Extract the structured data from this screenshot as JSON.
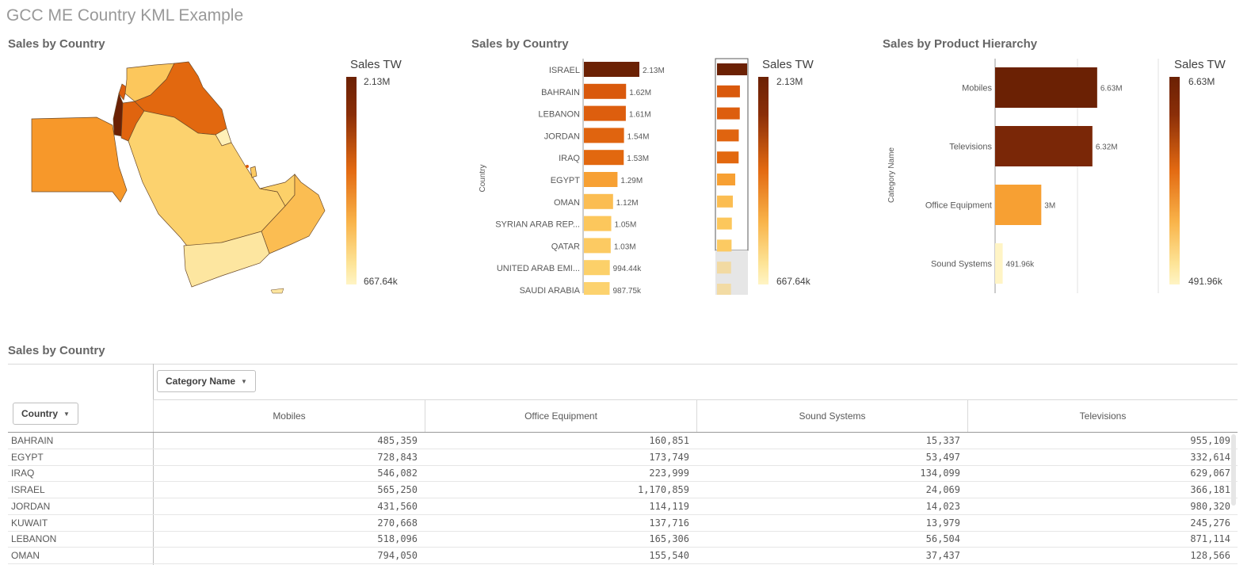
{
  "app": {
    "title": "GCC ME Country KML Example"
  },
  "colors": {
    "dark": "#6b2104",
    "mid": "#e0640f",
    "orange": "#f39a2a",
    "light": "#fcd26e",
    "pale": "#fff0b8"
  },
  "map_panel": {
    "title": "Sales by Country",
    "legend": {
      "title": "Sales TW",
      "max_label": "2.13M",
      "min_label": "667.64k"
    }
  },
  "country_bar_panel": {
    "title": "Sales by Country",
    "legend": {
      "title": "Sales TW",
      "max_label": "2.13M",
      "min_label": "667.64k"
    }
  },
  "product_panel": {
    "title": "Sales by Product Hierarchy",
    "legend": {
      "title": "Sales TW",
      "max_label": "6.63M",
      "min_label": "491.96k"
    }
  },
  "chart_data": [
    {
      "type": "bar",
      "orientation": "horizontal",
      "title": "Sales by Country",
      "ylabel": "Country",
      "categories": [
        "ISRAEL",
        "BAHRAIN",
        "LEBANON",
        "JORDAN",
        "IRAQ",
        "EGYPT",
        "OMAN",
        "SYRIAN ARAB REP...",
        "QATAR",
        "UNITED ARAB EMI...",
        "SAUDI ARABIA"
      ],
      "values": [
        2130000,
        1620000,
        1610000,
        1540000,
        1530000,
        1290000,
        1120000,
        1050000,
        1030000,
        994440,
        987750
      ],
      "value_labels": [
        "2.13M",
        "1.62M",
        "1.61M",
        "1.54M",
        "1.53M",
        "1.29M",
        "1.12M",
        "1.05M",
        "1.03M",
        "994.44k",
        "987.75k"
      ],
      "colors": [
        "#6b2104",
        "#d9590c",
        "#dd5e0e",
        "#e0640f",
        "#e2680f",
        "#f7a033",
        "#fbbd52",
        "#fcc75c",
        "#fcca62",
        "#fcd069",
        "#fcd26e"
      ],
      "xlim": [
        0,
        2400000
      ]
    },
    {
      "type": "bar",
      "orientation": "horizontal",
      "title": "Sales by Product Hierarchy",
      "ylabel": "Category Name",
      "categories": [
        "Mobiles",
        "Televisions",
        "Office Equipment",
        "Sound Systems"
      ],
      "values": [
        6630000,
        6320000,
        3000000,
        491960
      ],
      "value_labels": [
        "6.63M",
        "6.32M",
        "3M",
        "491.96k"
      ],
      "colors": [
        "#6b2104",
        "#7a2707",
        "#f7a033",
        "#fff4c5"
      ],
      "xlim": [
        0,
        10600000
      ]
    }
  ],
  "pivot": {
    "title": "Sales by Country",
    "row_dim_button": "Country",
    "col_dim_button": "Category Name",
    "columns": [
      "Mobiles",
      "Office Equipment",
      "Sound Systems",
      "Televisions"
    ],
    "rows": [
      {
        "country": "BAHRAIN",
        "values": [
          "485,359",
          "160,851",
          "15,337",
          "955,109"
        ]
      },
      {
        "country": "EGYPT",
        "values": [
          "728,843",
          "173,749",
          "53,497",
          "332,614"
        ]
      },
      {
        "country": "IRAQ",
        "values": [
          "546,082",
          "223,999",
          "134,099",
          "629,067"
        ]
      },
      {
        "country": "ISRAEL",
        "values": [
          "565,250",
          "1,170,859",
          "24,069",
          "366,181"
        ]
      },
      {
        "country": "JORDAN",
        "values": [
          "431,560",
          "114,119",
          "14,023",
          "980,320"
        ]
      },
      {
        "country": "KUWAIT",
        "values": [
          "270,668",
          "137,716",
          "13,979",
          "245,276"
        ]
      },
      {
        "country": "LEBANON",
        "values": [
          "518,096",
          "165,306",
          "56,504",
          "871,114"
        ]
      },
      {
        "country": "OMAN",
        "values": [
          "794,050",
          "155,540",
          "37,437",
          "128,566"
        ]
      }
    ]
  }
}
